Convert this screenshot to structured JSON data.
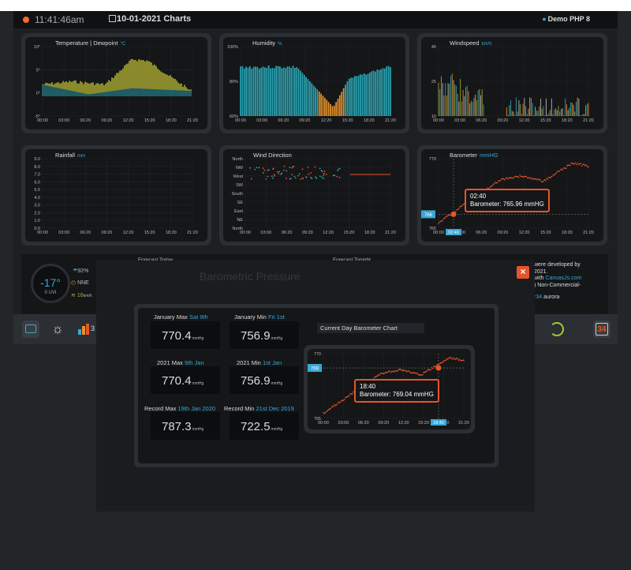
{
  "header": {
    "time": "11:41:46am",
    "date": "10-01-2021 Charts",
    "location": "Demo PHP 8"
  },
  "panels": {
    "temperature": {
      "title": "Temperature | Dewpoint",
      "unit": "°C",
      "yticks": [
        "10°",
        "5°",
        "0°",
        "-5°"
      ]
    },
    "humidity": {
      "title": "Humidity",
      "unit": "%",
      "yticks": [
        "100%",
        "80%",
        "60%"
      ]
    },
    "windspeed": {
      "title": "Windspeed",
      "unit": "km/h",
      "yticks": [
        "40",
        "25",
        "10"
      ]
    },
    "rainfall": {
      "title": "Rainfall",
      "unit": "mm",
      "yticks": [
        "9.0",
        "8.0",
        "7.0",
        "6.0",
        "5.0",
        "4.0",
        "3.0",
        "2.0",
        "1.0",
        "0.0"
      ]
    },
    "wind_direction": {
      "title": "Wind Direction",
      "yticks": [
        "North",
        "NW",
        "West",
        "SW",
        "South",
        "SE",
        "East",
        "NE",
        "North"
      ]
    },
    "barometer": {
      "title": "Barometer",
      "unit": "mmHG",
      "yticks": [
        "770",
        "765"
      ],
      "crosshair_y": "766",
      "crosshair_x": "02:40",
      "tooltip_time": "02:40",
      "tooltip_value": "Barometer:  765.96 mmHG"
    },
    "xticks": [
      "00:00",
      "03:00",
      "06:20",
      "09:20",
      "12:20",
      "15:20",
      "18:20",
      "21:20"
    ]
  },
  "row3": {
    "temp": "-17°",
    "uvi": "0 UVI",
    "humidity": "92%",
    "direction": "NNE",
    "wind": "16",
    "wind_unit": "km/h",
    "forecast_today": "Forecast Today",
    "forecast_tonight": "Forecast Tonight",
    "credits_line1": "were developed by",
    "credits_line2": "2021.",
    "credits_line3a": "with ",
    "credits_line3b": "CanvasJs.com",
    "credits_line4": ") Non-Commercial-",
    "credits_line5a": "r34",
    "credits_line5b": " aurora"
  },
  "bottombar": {
    "badge": "34",
    "clip_text": "3"
  },
  "modal": {
    "title": "Barometric Pressure",
    "close": "×",
    "jan_max_label": "January Max ",
    "jan_max_when": "Sat 9th",
    "jan_max_value": "770.4",
    "jan_min_label": "January Min ",
    "jan_min_when": "Fri 1st",
    "jan_min_value": "756.9",
    "y_max_label": "2021 Max ",
    "y_max_when": "9th Jan",
    "y_max_value": "770.4",
    "y_min_label": "2021 Min ",
    "y_min_when": "1st Jan",
    "y_min_value": "756.9",
    "rec_max_label": "Record Max ",
    "rec_max_when": "19th Jan 2020",
    "rec_max_value": "787.3",
    "rec_min_label": "Record Min ",
    "rec_min_when": "21st Dec 2019",
    "rec_min_value": "722.5",
    "unit": "mmHg",
    "chart_title": "Current Day Barometer Chart",
    "chart_yticks": [
      "770",
      "765"
    ],
    "crosshair_y": "769",
    "crosshair_x": "18:40",
    "tooltip_time": "18:40",
    "tooltip_value": "Barometer:  769.04 mmHG",
    "xticks": [
      "00:00",
      "03:00",
      "06:20",
      "09:20",
      "12:20",
      "15:20",
      "18:20",
      "21:20"
    ]
  },
  "colors": {
    "accent": "#3aa7d6",
    "orange": "#e8542b",
    "olive": "#a7a832",
    "teal": "#2aa9b8"
  }
}
